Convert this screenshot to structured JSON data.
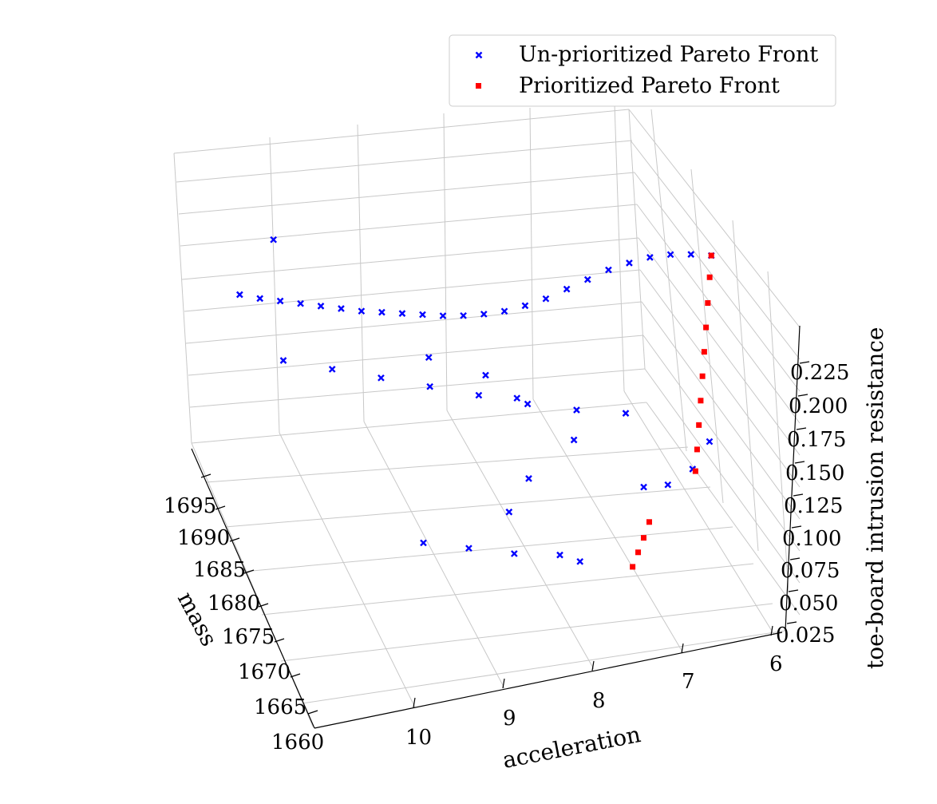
{
  "chart_data": {
    "type": "scatter",
    "subtype": "3d",
    "colors": {
      "series_unprioritized": "#0000ff",
      "series_prioritized": "#ff0000",
      "grid": "#c8c8c8"
    },
    "legend": {
      "placement": "top-right",
      "entries": [
        "Un-prioritized Pareto Front",
        "Prioritized Pareto Front"
      ]
    },
    "axes": {
      "mass": {
        "label": "mass",
        "ticks": [
          "1660",
          "1665",
          "1670",
          "1675",
          "1680",
          "1685",
          "1690",
          "1695"
        ],
        "range": [
          1660,
          1698
        ]
      },
      "acceleration": {
        "label": "acceleration",
        "ticks": [
          "10",
          "9",
          "8",
          "7",
          "6"
        ],
        "range": [
          5.7,
          11.2
        ]
      },
      "toe_board": {
        "label": "toe-board intrusion resistance",
        "ticks": [
          "0.025",
          "0.050",
          "0.075",
          "0.100",
          "0.125",
          "0.150",
          "0.175",
          "0.200",
          "0.225"
        ],
        "range": [
          0.02,
          0.245
        ]
      }
    },
    "grid": true,
    "series": [
      {
        "name": "Un-prioritized Pareto Front",
        "marker": "x",
        "points": [
          [
            1696,
            10.8,
            0.14
          ],
          [
            1695,
            10.6,
            0.14
          ],
          [
            1694,
            10.4,
            0.141
          ],
          [
            1693,
            10.2,
            0.142
          ],
          [
            1692,
            10.0,
            0.143
          ],
          [
            1691,
            9.8,
            0.144
          ],
          [
            1690,
            9.6,
            0.145
          ],
          [
            1689,
            9.4,
            0.147
          ],
          [
            1688,
            9.2,
            0.149
          ],
          [
            1687,
            9.0,
            0.151
          ],
          [
            1686,
            8.8,
            0.153
          ],
          [
            1685,
            8.6,
            0.156
          ],
          [
            1684,
            8.4,
            0.16
          ],
          [
            1683,
            8.2,
            0.165
          ],
          [
            1682,
            8.0,
            0.172
          ],
          [
            1681,
            7.8,
            0.18
          ],
          [
            1680,
            7.6,
            0.19
          ],
          [
            1679,
            7.4,
            0.2
          ],
          [
            1678,
            7.2,
            0.21
          ],
          [
            1677,
            7.0,
            0.218
          ],
          [
            1676,
            6.8,
            0.225
          ],
          [
            1675,
            6.6,
            0.23
          ],
          [
            1674,
            6.4,
            0.233
          ],
          [
            1673,
            6.2,
            0.235
          ],
          [
            1690,
            10.5,
            0.12
          ],
          [
            1688,
            10.0,
            0.118
          ],
          [
            1686,
            9.5,
            0.116
          ],
          [
            1684,
            9.0,
            0.114
          ],
          [
            1682,
            8.5,
            0.112
          ],
          [
            1680,
            8.0,
            0.11
          ],
          [
            1678,
            7.5,
            0.11
          ],
          [
            1676,
            7.0,
            0.112
          ],
          [
            1672,
            9.5,
            0.07
          ],
          [
            1671,
            9.0,
            0.065
          ],
          [
            1670,
            8.5,
            0.06
          ],
          [
            1669,
            8.0,
            0.058
          ],
          [
            1668,
            7.8,
            0.056
          ],
          [
            1672,
            8.5,
            0.08
          ],
          [
            1674,
            8.2,
            0.09
          ],
          [
            1676,
            7.6,
            0.1
          ],
          [
            1692,
            10.6,
            0.2
          ],
          [
            1680,
            9.2,
            0.16
          ],
          [
            1678,
            8.6,
            0.15
          ],
          [
            1676,
            8.3,
            0.14
          ],
          [
            1670,
            7.0,
            0.09
          ],
          [
            1668,
            6.8,
            0.1
          ],
          [
            1666,
            6.6,
            0.12
          ],
          [
            1664,
            6.5,
            0.15
          ]
        ]
      },
      {
        "name": "Prioritized Pareto Front",
        "marker": "square",
        "points": [
          [
            1673,
            6.2,
            0.235
          ],
          [
            1672,
            6.25,
            0.225
          ],
          [
            1671,
            6.3,
            0.212
          ],
          [
            1670,
            6.35,
            0.2
          ],
          [
            1669,
            6.4,
            0.188
          ],
          [
            1668,
            6.45,
            0.176
          ],
          [
            1667,
            6.5,
            0.164
          ],
          [
            1666,
            6.55,
            0.152
          ],
          [
            1665,
            6.6,
            0.14
          ],
          [
            1664,
            6.65,
            0.13
          ],
          [
            1668,
            7.0,
            0.075
          ],
          [
            1667,
            7.1,
            0.07
          ],
          [
            1666,
            7.2,
            0.066
          ],
          [
            1665,
            7.3,
            0.062
          ]
        ]
      }
    ]
  }
}
